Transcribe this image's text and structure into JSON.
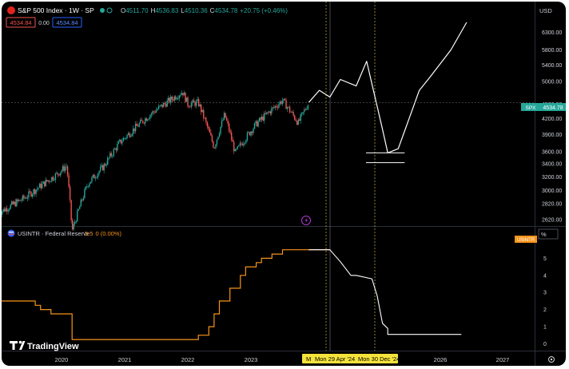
{
  "header": {
    "title": "S&P 500 Index · 1W · SP",
    "ohlc": {
      "o_label": "O",
      "o": "4511.70",
      "h_label": "H",
      "h": "4536.83",
      "l_label": "L",
      "l": "4510.36",
      "c_label": "C",
      "c": "4534.78",
      "change": "+20.75 (+0.46%)"
    },
    "sell_price": "4534.84",
    "spread": "0.00",
    "buy_price": "4534.84",
    "currency": "USD"
  },
  "indicator": {
    "title": "USINTR · Federal Reserve",
    "value": "5.5",
    "change": "0 (0.00%)",
    "unit_label": "%",
    "badge": "USINTR"
  },
  "price_badge": {
    "symbol": "SPX",
    "value": "4534.78"
  },
  "crosshair": {
    "marker": "M",
    "date1": "Mon 29 Apr '24",
    "date2": "Mon 30 Dec '24"
  },
  "brand": "TradingView",
  "colors": {
    "up": "#26a69a",
    "down": "#ef5350",
    "drawing": "#ffffff",
    "fed_line": "#f7931a",
    "fed_projection": "#ffffff",
    "crosshair_badge": "#f5e33b",
    "spx_badge": "#26a69a",
    "usintr_badge": "#f7931a",
    "vline": "#b5a642"
  },
  "chart_data": [
    {
      "type": "candlestick",
      "title": "S&P 500 Index · 1W · SP",
      "x_axis_labels": [
        "2020",
        "2021",
        "2022",
        "2023",
        "2026",
        "2027"
      ],
      "y_axis": {
        "scale": "log",
        "ticks": [
          2620,
          2820,
          3000,
          3200,
          3400,
          3600,
          3900,
          4200,
          4500,
          5000,
          5400,
          5800,
          6300
        ],
        "tick_labels": [
          "2620.00",
          "2820.00",
          "3000.00",
          "3200.00",
          "3400.00",
          "3600.00",
          "3900.00",
          "4200.00",
          "4500.00",
          "5000.00",
          "5400.00",
          "5800.00",
          "6300.00"
        ],
        "range": [
          2550,
          6700
        ]
      },
      "series": [
        {
          "kind": "candles",
          "approx_weekly_closes": [
            {
              "date": "2019-01",
              "close": 2700
            },
            {
              "date": "2019-06",
              "close": 2900
            },
            {
              "date": "2019-12",
              "close": 3230
            },
            {
              "date": "2020-02",
              "close": 3370
            },
            {
              "date": "2020-03",
              "close": 2480
            },
            {
              "date": "2020-06",
              "close": 3100
            },
            {
              "date": "2020-09",
              "close": 3360
            },
            {
              "date": "2020-12",
              "close": 3750
            },
            {
              "date": "2021-06",
              "close": 4300
            },
            {
              "date": "2021-12",
              "close": 4770
            },
            {
              "date": "2022-01",
              "close": 4500
            },
            {
              "date": "2022-03",
              "close": 4530
            },
            {
              "date": "2022-06",
              "close": 3670
            },
            {
              "date": "2022-08",
              "close": 4280
            },
            {
              "date": "2022-10",
              "close": 3580
            },
            {
              "date": "2022-12",
              "close": 3840
            },
            {
              "date": "2023-02",
              "close": 4100
            },
            {
              "date": "2023-07",
              "close": 4580
            },
            {
              "date": "2023-10",
              "close": 4120
            },
            {
              "date": "2023-12",
              "close": 4534.78
            }
          ]
        },
        {
          "kind": "hand-drawn projection",
          "points": [
            {
              "date": "2023-12",
              "value": 4534.78
            },
            {
              "date": "2024-02",
              "value": 4800
            },
            {
              "date": "2024-04",
              "value": 4650
            },
            {
              "date": "2024-06",
              "value": 5050
            },
            {
              "date": "2024-09",
              "value": 4900
            },
            {
              "date": "2024-11",
              "value": 5500
            },
            {
              "date": "2025-02",
              "value": 4000
            },
            {
              "date": "2025-03",
              "value": 3580
            },
            {
              "date": "2025-05",
              "value": 3650
            },
            {
              "date": "2025-09",
              "value": 4800
            },
            {
              "date": "2025-11",
              "value": 5100
            },
            {
              "date": "2026-03",
              "value": 5800
            },
            {
              "date": "2026-06",
              "value": 6600
            }
          ]
        }
      ],
      "annotations": [
        {
          "type": "horizontal-line",
          "value": 3580
        },
        {
          "type": "horizontal-line",
          "value": 3420
        }
      ]
    },
    {
      "type": "line",
      "title": "USINTR · Federal Reserve",
      "ylabel": "%",
      "y_axis": {
        "ticks": [
          0,
          1,
          2,
          3,
          4,
          5
        ],
        "range": [
          -0.4,
          6.0
        ]
      },
      "series": [
        {
          "name": "USINTR",
          "kind": "step",
          "points": [
            {
              "date": "2019-01",
              "value": 2.5
            },
            {
              "date": "2019-08",
              "value": 2.25
            },
            {
              "date": "2019-09",
              "value": 2.0
            },
            {
              "date": "2019-11",
              "value": 1.75
            },
            {
              "date": "2020-03",
              "value": 0.25
            },
            {
              "date": "2022-03",
              "value": 0.5
            },
            {
              "date": "2022-05",
              "value": 1.0
            },
            {
              "date": "2022-06",
              "value": 1.75
            },
            {
              "date": "2022-07",
              "value": 2.5
            },
            {
              "date": "2022-09",
              "value": 3.25
            },
            {
              "date": "2022-11",
              "value": 4.0
            },
            {
              "date": "2022-12",
              "value": 4.5
            },
            {
              "date": "2023-02",
              "value": 4.75
            },
            {
              "date": "2023-03",
              "value": 5.0
            },
            {
              "date": "2023-05",
              "value": 5.25
            },
            {
              "date": "2023-07",
              "value": 5.5
            },
            {
              "date": "2023-12",
              "value": 5.5
            }
          ]
        },
        {
          "name": "projection",
          "kind": "hand-drawn",
          "points": [
            {
              "date": "2023-12",
              "value": 5.5
            },
            {
              "date": "2024-04",
              "value": 5.5
            },
            {
              "date": "2024-06",
              "value": 4.8
            },
            {
              "date": "2024-08",
              "value": 4.0
            },
            {
              "date": "2024-09",
              "value": 4.0
            },
            {
              "date": "2024-12",
              "value": 3.8
            },
            {
              "date": "2025-01",
              "value": 2.8
            },
            {
              "date": "2025-02",
              "value": 1.2
            },
            {
              "date": "2025-03",
              "value": 0.9
            },
            {
              "date": "2025-03",
              "value": 0.55
            },
            {
              "date": "2026-05",
              "value": 0.55
            }
          ]
        }
      ]
    }
  ]
}
